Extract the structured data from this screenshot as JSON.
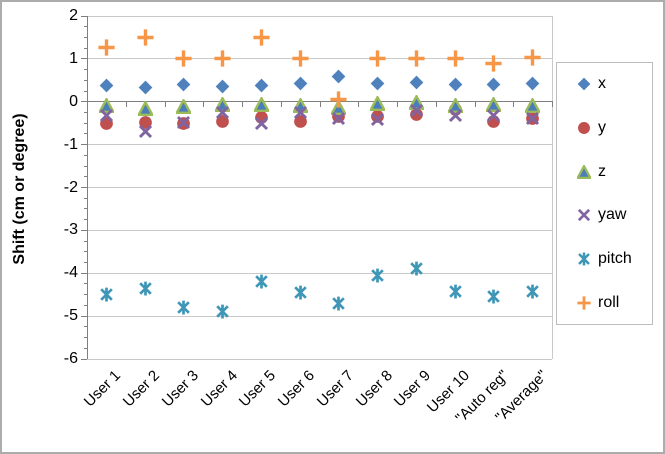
{
  "chart_data": {
    "type": "scatter",
    "title": "",
    "xlabel": "",
    "ylabel": "Shift (cm or degree)",
    "ylim": [
      -6,
      2
    ],
    "y_ticks": [
      2,
      1,
      0,
      -1,
      -2,
      -3,
      -4,
      -5,
      -6
    ],
    "grid": true,
    "legend_position": "right",
    "categories": [
      "User 1",
      "User 2",
      "User 3",
      "User 4",
      "User 5",
      "User 6",
      "User 7",
      "User 8",
      "User 9",
      "User 10",
      "\"Auto reg\"",
      "\"Average\""
    ],
    "series": [
      {
        "name": "x",
        "marker": "diamond",
        "color": "#4F81BD",
        "values": [
          0.37,
          0.34,
          0.4,
          0.36,
          0.38,
          0.42,
          0.58,
          0.42,
          0.44,
          0.4,
          0.4,
          0.42
        ]
      },
      {
        "name": "y",
        "marker": "circle",
        "color": "#C0504D",
        "values": [
          -0.51,
          -0.48,
          -0.51,
          -0.47,
          -0.37,
          -0.47,
          -0.35,
          -0.35,
          -0.3,
          -0.18,
          -0.45,
          -0.38
        ]
      },
      {
        "name": "z",
        "marker": "triangle",
        "color": "#9BBB59",
        "fill": "#4A7EBB",
        "values": [
          -0.08,
          -0.15,
          -0.12,
          -0.06,
          -0.06,
          -0.09,
          -0.13,
          -0.04,
          -0.02,
          -0.08,
          -0.06,
          -0.08
        ]
      },
      {
        "name": "yaw",
        "marker": "x-cross",
        "color": "#8064A2",
        "values": [
          -0.33,
          -0.7,
          -0.48,
          -0.26,
          -0.5,
          -0.25,
          -0.4,
          -0.42,
          -0.2,
          -0.33,
          -0.31,
          -0.4
        ]
      },
      {
        "name": "pitch",
        "marker": "asterisk",
        "color": "#3F97B7",
        "values": [
          -4.5,
          -4.35,
          -4.8,
          -4.9,
          -4.2,
          -4.45,
          -4.7,
          -4.05,
          -3.88,
          -4.43,
          -4.55,
          -4.42
        ]
      },
      {
        "name": "roll",
        "marker": "plus",
        "color": "#F79646",
        "values": [
          1.27,
          1.5,
          1.0,
          1.02,
          1.5,
          1.0,
          0.05,
          1.0,
          1.02,
          1.0,
          0.9,
          1.03
        ]
      }
    ]
  }
}
